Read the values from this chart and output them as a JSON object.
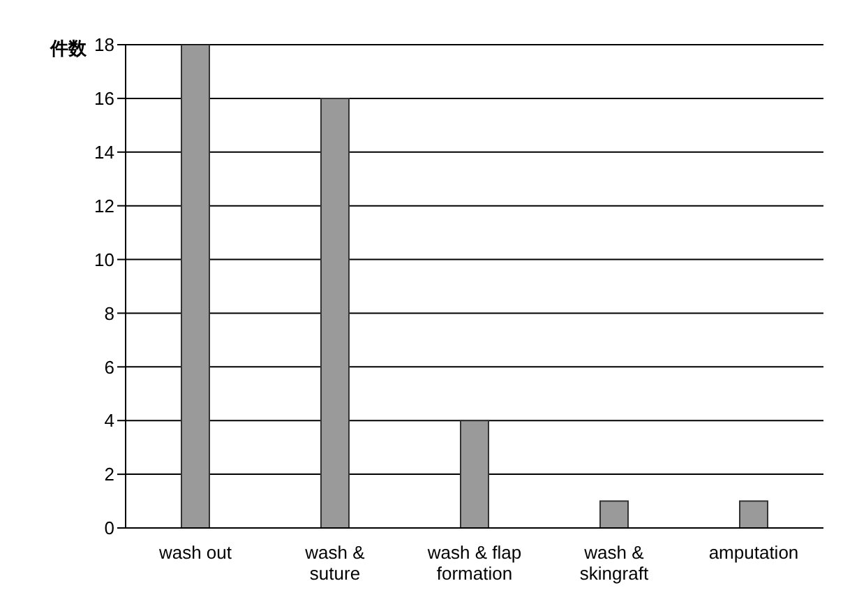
{
  "chart_data": {
    "type": "bar",
    "ylabel": "件数",
    "categories": [
      "wash out",
      "wash & suture",
      "wash & flap formation",
      "wash & skingraft",
      "amputation"
    ],
    "values": [
      18,
      16,
      4,
      1,
      1
    ],
    "color": "#9a9a9a",
    "ylim": [
      0,
      18
    ],
    "yticks": [
      0,
      2,
      4,
      6,
      8,
      10,
      12,
      14,
      16,
      18
    ],
    "grid": "y"
  }
}
